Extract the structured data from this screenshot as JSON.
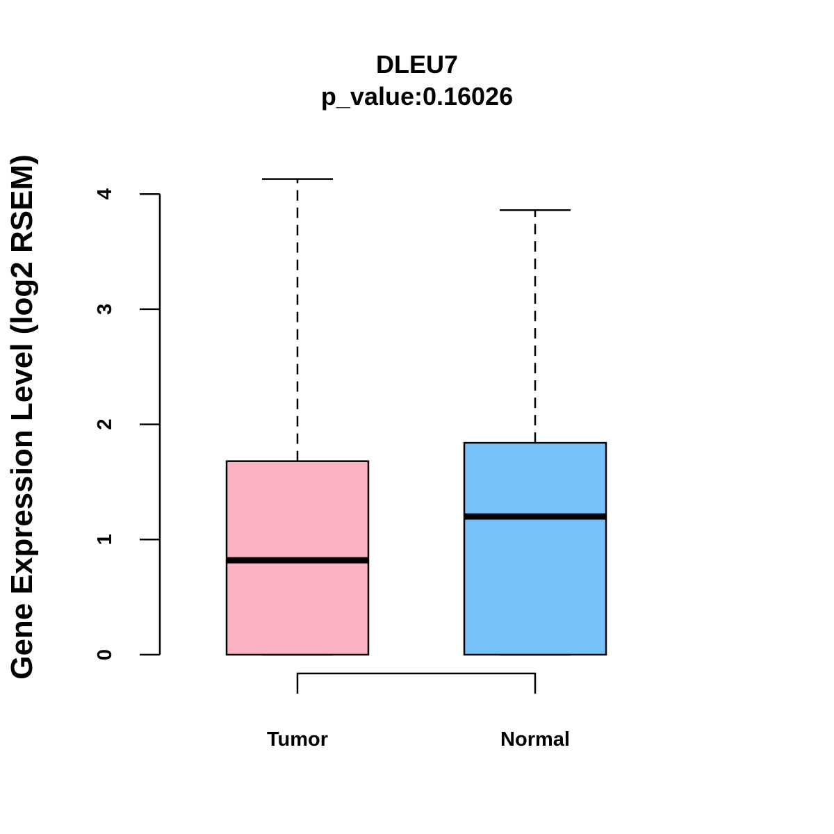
{
  "chart_data": {
    "type": "boxplot",
    "title": "DLEU7",
    "subtitle": "p_value:0.16026",
    "xlabel": "",
    "ylabel": "Gene Expression Level (log2 RSEM)",
    "ylim": [
      0,
      4.2
    ],
    "yticks": [
      0,
      1,
      2,
      3,
      4
    ],
    "ytick_labels": [
      "0",
      "1",
      "2",
      "3",
      "4"
    ],
    "grid": false,
    "legend": "none",
    "categories": [
      "Tumor",
      "Normal"
    ],
    "series": [
      {
        "name": "Tumor",
        "color": "#FCB1C3",
        "min": 0,
        "q1": 0,
        "median": 0.82,
        "q3": 1.68,
        "max": 4.13
      },
      {
        "name": "Normal",
        "color": "#76C1F8",
        "min": 0,
        "q1": 0,
        "median": 1.2,
        "q3": 1.84,
        "max": 3.86
      }
    ],
    "comparison_bracket": {
      "from": "Tumor",
      "to": "Normal"
    }
  }
}
